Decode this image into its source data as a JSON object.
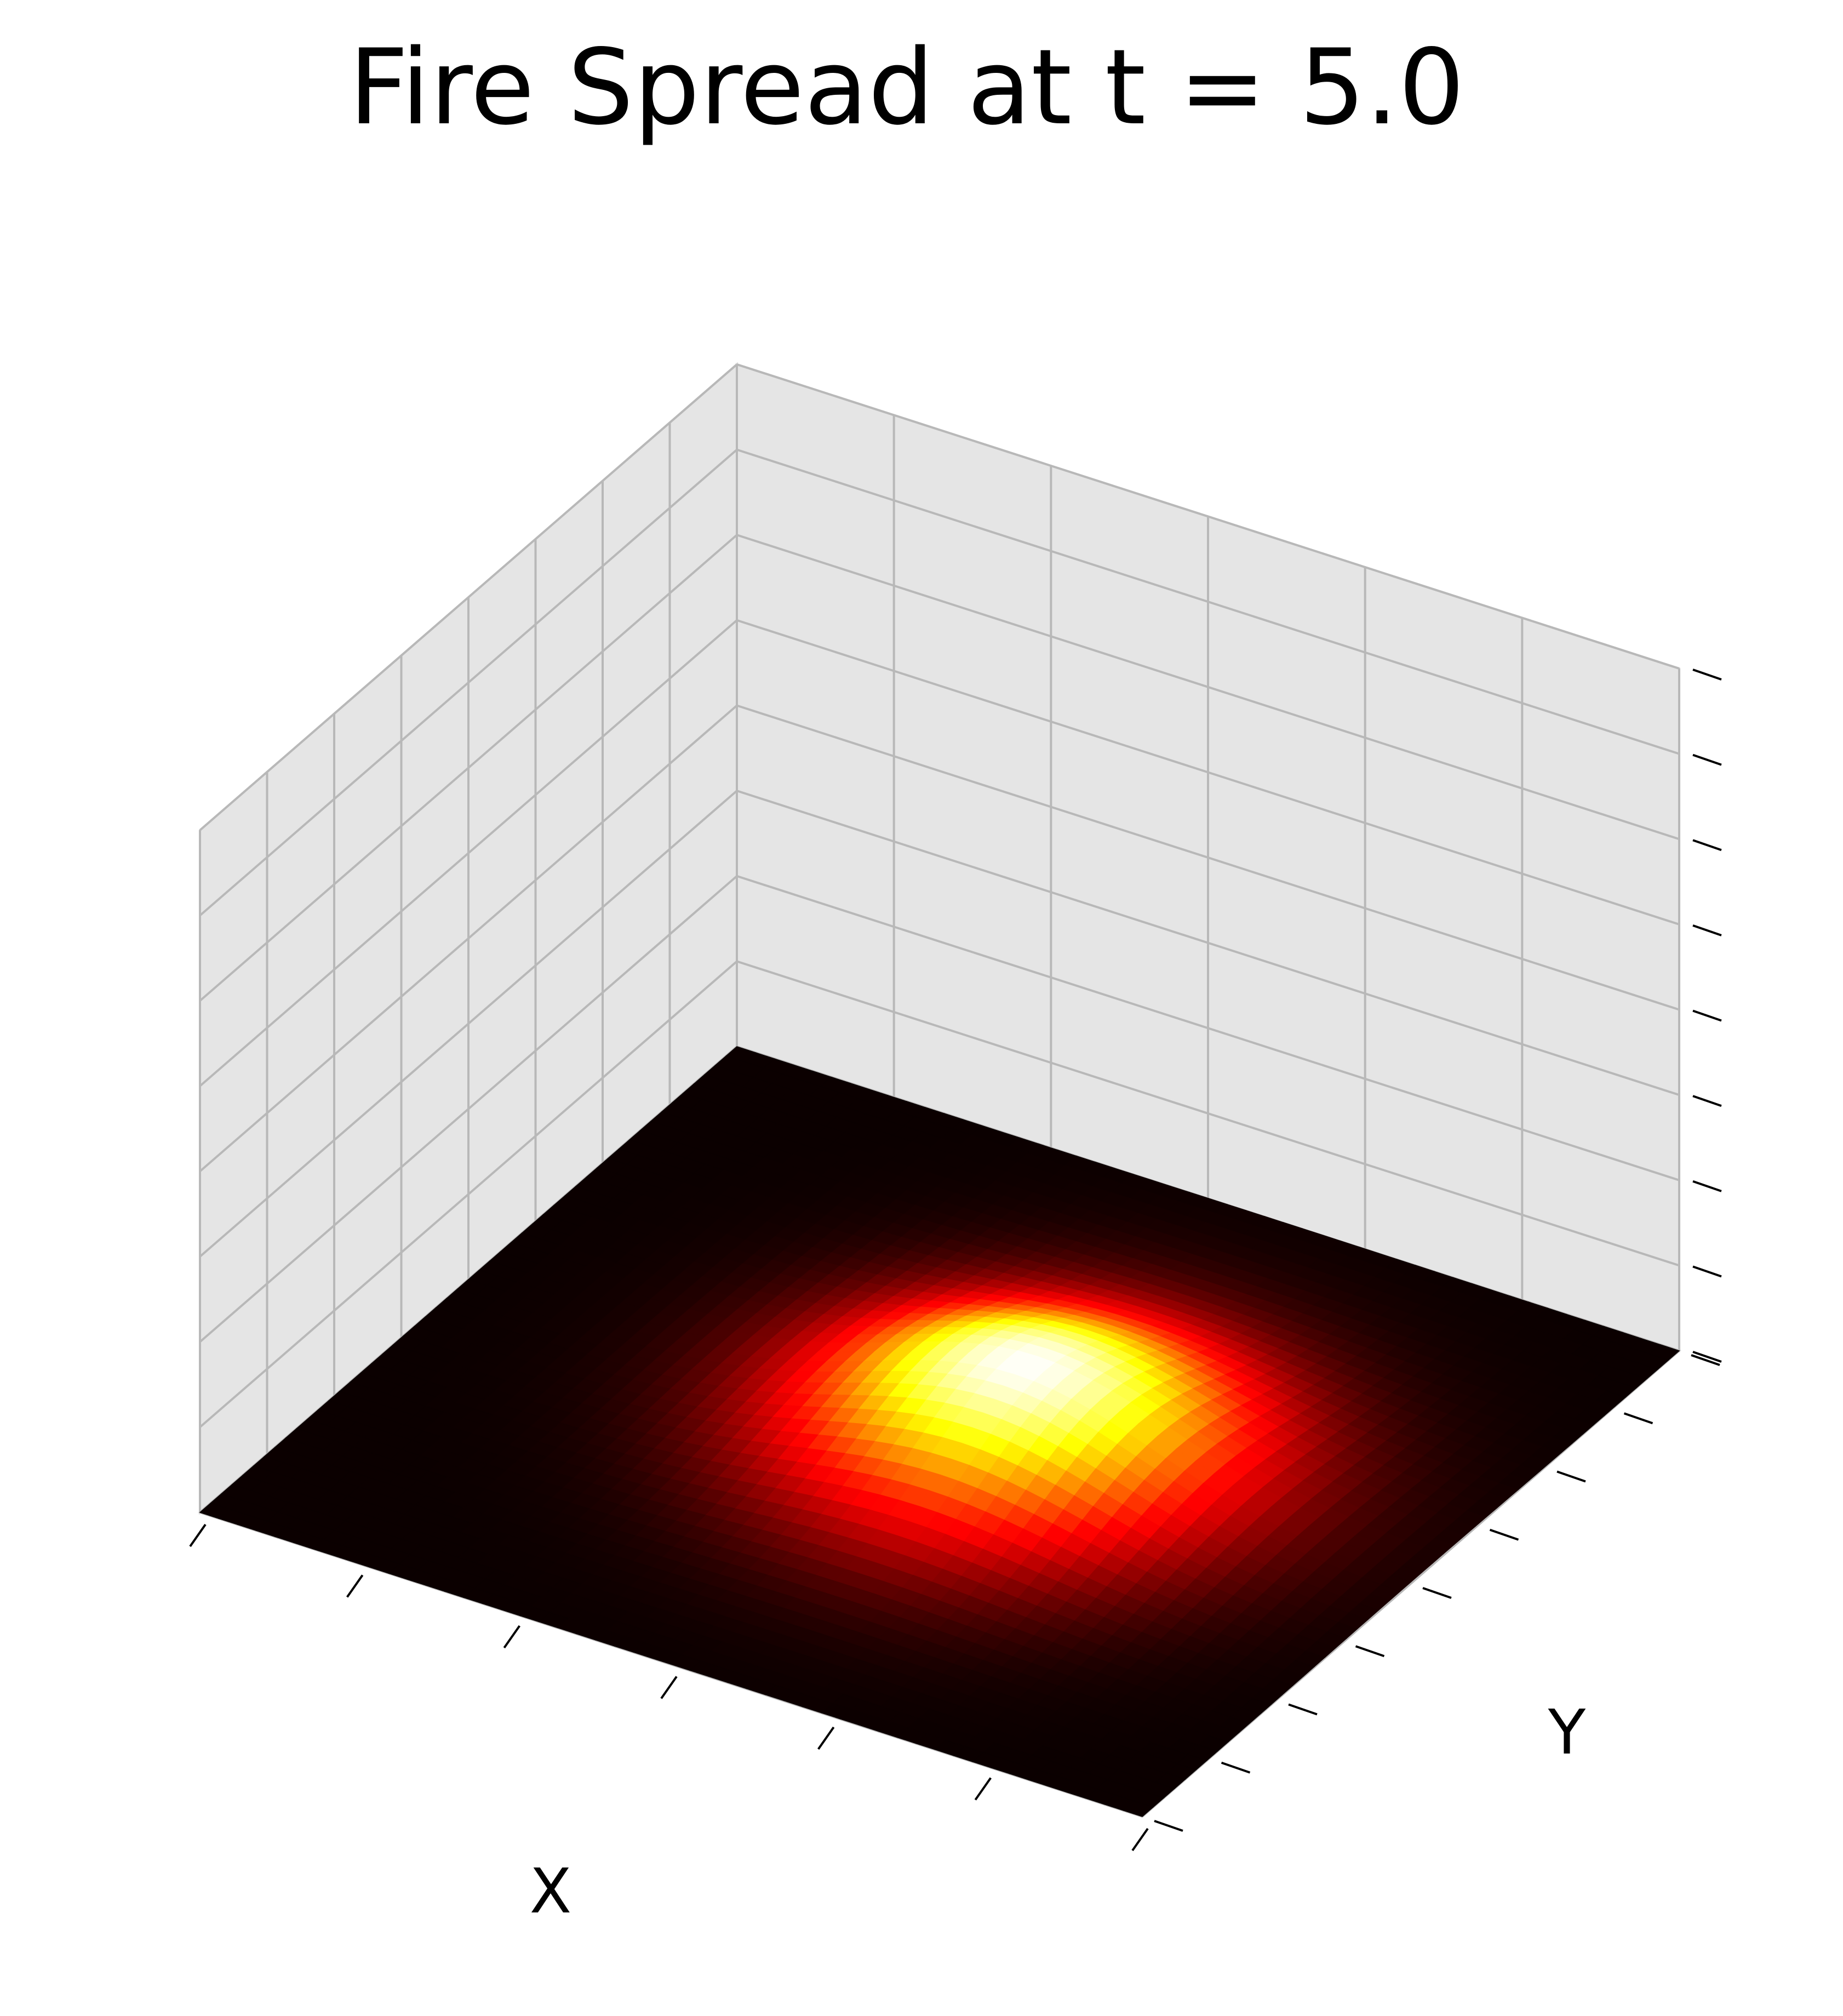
{
  "chart_data": {
    "type": "surface3d",
    "title": "Fire Spread at t = 5.0",
    "xlabel": "X",
    "ylabel": "Y",
    "zlabel": "",
    "tick_labels_shown": false,
    "grid": true,
    "colormap": "hot",
    "grid_resolution": 50,
    "x_range": [
      0,
      1
    ],
    "y_range": [
      0,
      1
    ],
    "z_range": [
      0,
      1
    ],
    "x_tick_count": 7,
    "y_tick_count": 9,
    "z_tick_count": 9,
    "surface": {
      "shape": "gaussian",
      "peak_x": 0.58,
      "peak_y": 0.52,
      "peak_z": 0.12,
      "spread": 0.15
    },
    "colors": {
      "pane": "#e5e5e5",
      "pane_edge": "#d9d9d9",
      "gridline": "#b8b8b8",
      "tick": "#000000",
      "background": "#ffffff"
    }
  }
}
